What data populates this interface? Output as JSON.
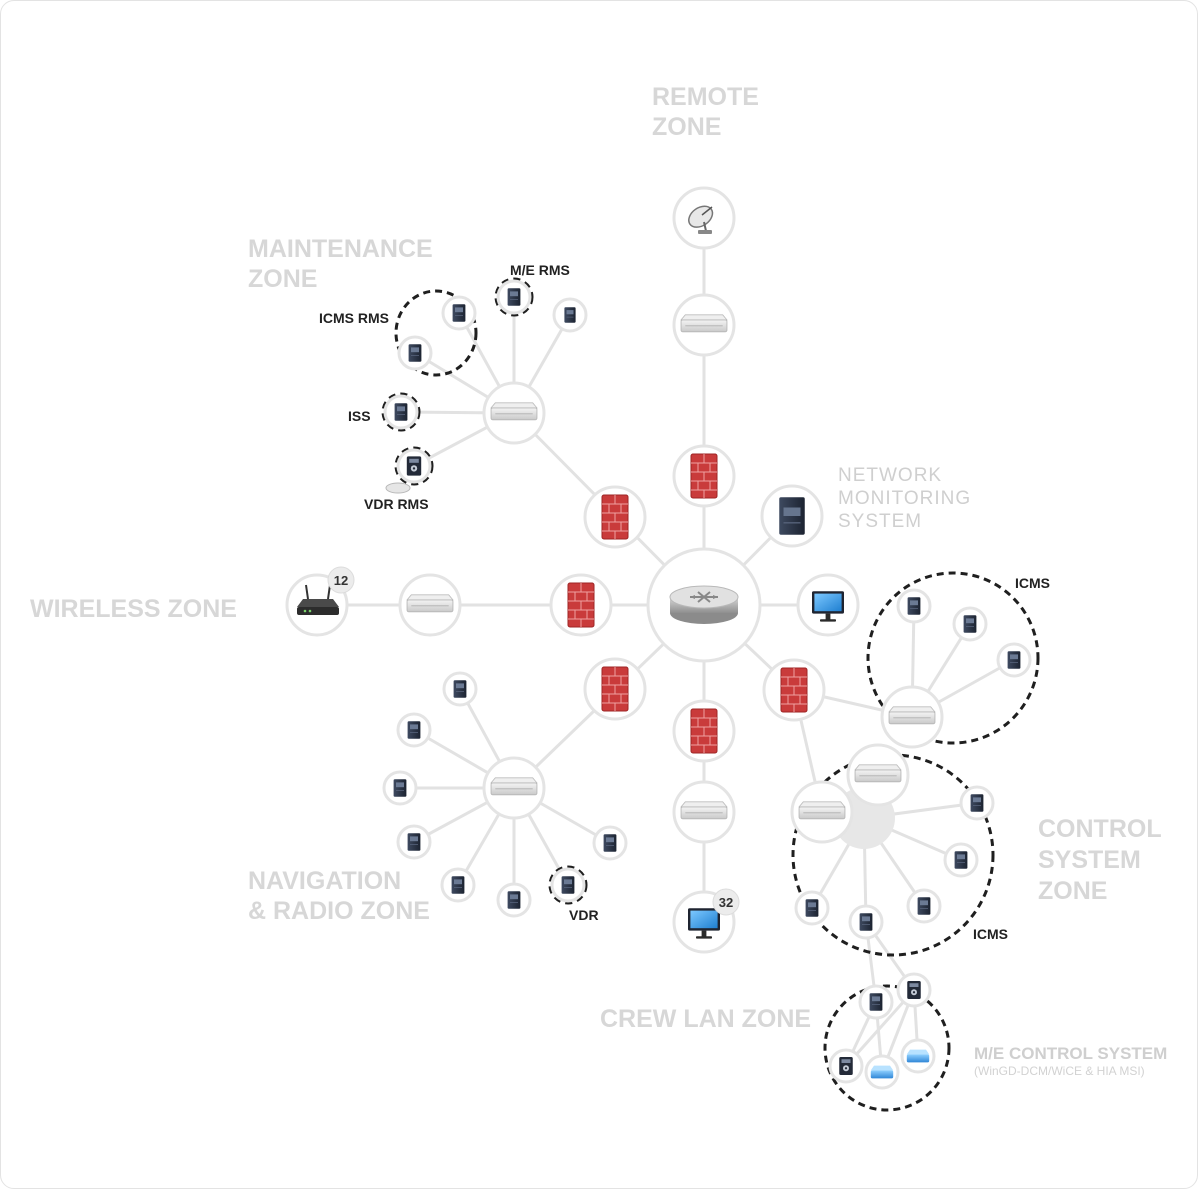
{
  "zones": {
    "remote": [
      "REMOTE",
      "ZONE"
    ],
    "maintenance": [
      "MAINTENANCE",
      "ZONE"
    ],
    "network_monitoring": [
      "NETWORK",
      "MONITORING",
      "SYSTEM"
    ],
    "wireless": "WIRELESS ZONE",
    "navigation": [
      "NAVIGATION",
      "& RADIO ZONE"
    ],
    "control": [
      "CONTROL",
      "SYSTEM",
      "ZONE"
    ],
    "crew_lan": "CREW LAN ZONE",
    "me_control": {
      "title": "M/E CONTROL SYSTEM",
      "subtitle": "(WinGD-DCM/WiCE & HIA MSI)"
    }
  },
  "labels": {
    "me_rms": "M/E RMS",
    "icms_rms": "ICMS RMS",
    "iss": "ISS",
    "vdr_rms": "VDR RMS",
    "vdr": "VDR",
    "icms_top": "ICMS",
    "icms_bottom": "ICMS"
  },
  "badges": {
    "wireless_count": "12",
    "crew_count": "32"
  },
  "colors": {
    "firewall": "#c73a3a",
    "server": "#2b3446",
    "monitor": "#3aa0e8",
    "zone_text": "#d7d7d7",
    "edge": "#e2e2e2"
  },
  "icons": {
    "core": "router-icon",
    "switch": "switch-icon",
    "firewall": "firewall-icon",
    "server": "server-icon",
    "monitor": "monitor-icon",
    "satellite": "satellite-dish-icon",
    "wifi_router": "wireless-router-icon",
    "controller": "controller-icon",
    "module": "blue-module-icon"
  }
}
